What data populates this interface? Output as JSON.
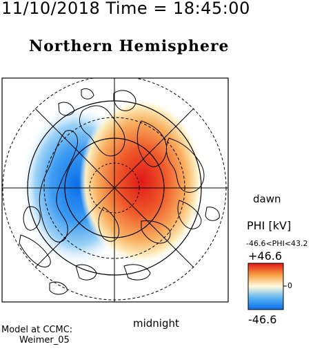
{
  "header": {
    "timestamp": "11/10/2018 Time = 18:45:00",
    "title": "Northern Hemisphere"
  },
  "map": {
    "type": "polar contour map",
    "labels": {
      "dawn": "dawn",
      "midnight": "midnight"
    },
    "potential_pattern": {
      "dusk_cell": "negative (blue)",
      "dawn_cell": "positive (red)"
    }
  },
  "colorbar": {
    "title": "PHI [kV]",
    "range_text": "-46.6<PHI<43.2",
    "max_label": "+46.6",
    "zero_label": "0",
    "min_label": "-46.6",
    "colors": {
      "top": "#e01818",
      "upper": "#f8a040",
      "middle": "#fffbe0",
      "lower": "#5ab4f0",
      "bottom": "#0a6fe8"
    }
  },
  "footer": {
    "model_line1": "Model at CCMC:",
    "model_line2": "Weimer_05"
  }
}
